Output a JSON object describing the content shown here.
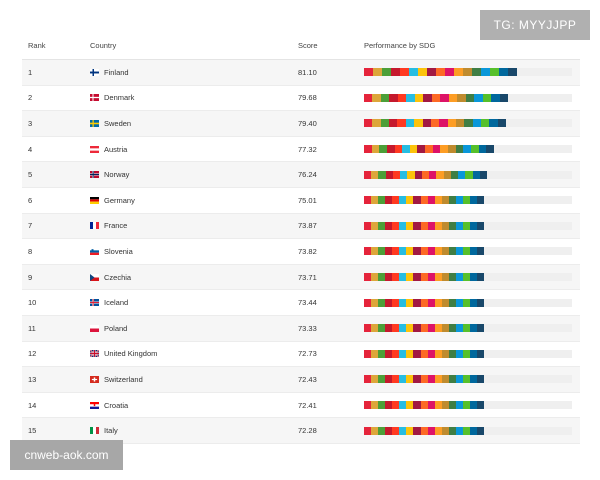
{
  "table": {
    "headers": {
      "rank": "Rank",
      "country": "Country",
      "score": "Score",
      "performance": "Performance by SDG"
    },
    "rows": [
      {
        "rank": "1",
        "country": "Finland",
        "score": "81.10",
        "flag": "flag-finland-icon"
      },
      {
        "rank": "2",
        "country": "Denmark",
        "score": "79.68",
        "flag": "flag-denmark-icon"
      },
      {
        "rank": "3",
        "country": "Sweden",
        "score": "79.40",
        "flag": "flag-sweden-icon"
      },
      {
        "rank": "4",
        "country": "Austria",
        "score": "77.32",
        "flag": "flag-austria-icon"
      },
      {
        "rank": "5",
        "country": "Norway",
        "score": "76.24",
        "flag": "flag-norway-icon"
      },
      {
        "rank": "6",
        "country": "Germany",
        "score": "75.01",
        "flag": "flag-germany-icon"
      },
      {
        "rank": "7",
        "country": "France",
        "score": "73.87",
        "flag": "flag-france-icon"
      },
      {
        "rank": "8",
        "country": "Slovenia",
        "score": "73.82",
        "flag": "flag-slovenia-icon"
      },
      {
        "rank": "9",
        "country": "Czechia",
        "score": "73.71",
        "flag": "flag-czechia-icon"
      },
      {
        "rank": "10",
        "country": "Iceland",
        "score": "73.44",
        "flag": "flag-iceland-icon"
      },
      {
        "rank": "11",
        "country": "Poland",
        "score": "73.33",
        "flag": "flag-poland-icon"
      },
      {
        "rank": "12",
        "country": "United Kingdom",
        "score": "72.73",
        "flag": "flag-uk-icon"
      },
      {
        "rank": "13",
        "country": "Switzerland",
        "score": "72.43",
        "flag": "flag-switzerland-icon"
      },
      {
        "rank": "14",
        "country": "Croatia",
        "score": "72.41",
        "flag": "flag-croatia-icon"
      },
      {
        "rank": "15",
        "country": "Italy",
        "score": "72.28",
        "flag": "flag-italy-icon"
      }
    ]
  },
  "sdg_colors": [
    "#e5243b",
    "#dda63a",
    "#4c9f38",
    "#c5192d",
    "#ff3a21",
    "#26bde2",
    "#fcc30b",
    "#a21942",
    "#fd6925",
    "#dd1367",
    "#fd9d24",
    "#bf8b2e",
    "#3f7e44",
    "#0a97d9",
    "#56c02b",
    "#00689d",
    "#19486a"
  ],
  "watermarks": {
    "telegram": "TG: MYYJJPP",
    "site": "cnweb-aok.com"
  }
}
